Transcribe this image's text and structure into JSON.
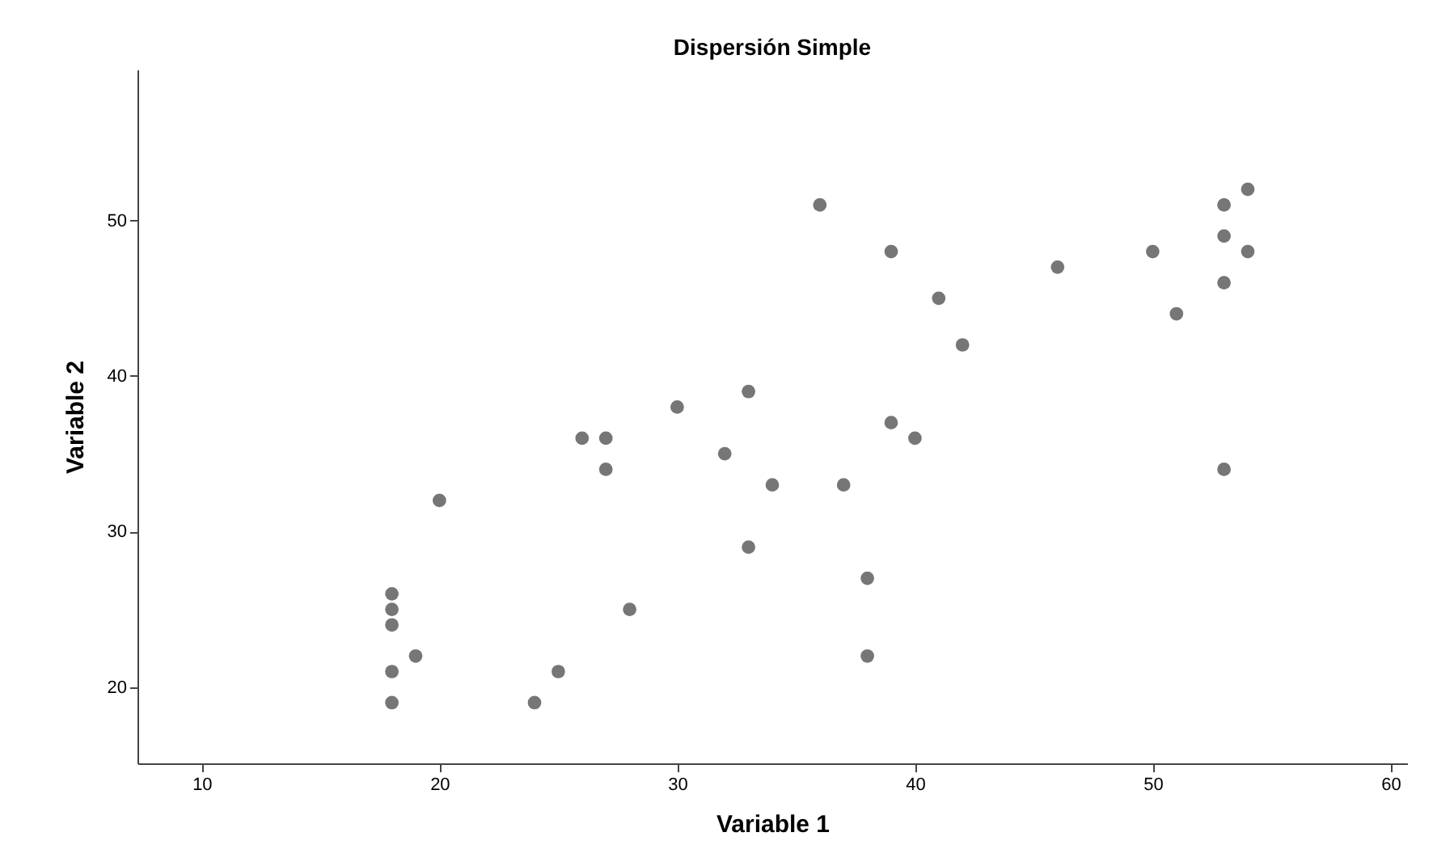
{
  "chart_data": {
    "type": "scatter",
    "title": "Dispersión Simple",
    "xlabel": "Variable 1",
    "ylabel": "Variable 2",
    "xlim": [
      7.3,
      60.7
    ],
    "ylim": [
      15.1,
      59.7
    ],
    "xticks": [
      10,
      20,
      30,
      40,
      50,
      60
    ],
    "yticks": [
      20,
      30,
      40,
      50
    ],
    "grid": false,
    "marker": "circle",
    "series": [
      {
        "color": "#767676",
        "x": [
          18,
          18,
          18,
          18,
          18,
          19,
          20,
          24,
          25,
          26,
          27,
          27,
          28,
          30,
          32,
          33,
          33,
          34,
          36,
          37,
          38,
          38,
          39,
          39,
          40,
          41,
          42,
          46,
          50,
          51,
          53,
          53,
          53,
          53,
          54,
          54
        ],
        "values": [
          26,
          25,
          24,
          21,
          19,
          22,
          32,
          19,
          21,
          36,
          36,
          34,
          25,
          38,
          35,
          39,
          29,
          33,
          51,
          33,
          27,
          22,
          48,
          37,
          36,
          45,
          42,
          47,
          48,
          44,
          51,
          49,
          46,
          34,
          52,
          48
        ]
      }
    ]
  }
}
